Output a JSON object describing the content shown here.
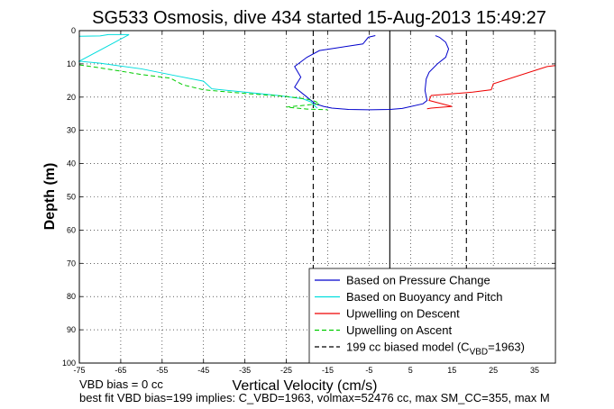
{
  "figure": {
    "footer_line1": "VBD bias = 0 cc",
    "footer_line2": "best fit VBD bias=199 implies: C_VBD=1963, volmax=52476 cc, max SM_CC=355, max M"
  },
  "chart_data": {
    "type": "line",
    "title": "SG533 Osmosis, dive 434 started 15-Aug-2013 15:49:27",
    "xlabel": "Vertical Velocity (cm/s)",
    "ylabel": "Depth (m)",
    "xlim": [
      -75,
      40
    ],
    "ylim": [
      100,
      0
    ],
    "y_inverted": true,
    "x_ticks": [
      "-75",
      "-65",
      "-55",
      "-45",
      "-35",
      "-25",
      "-15",
      "-5",
      "5",
      "15",
      "25",
      "35"
    ],
    "x_tick_values": [
      -75,
      -65,
      -55,
      -45,
      -35,
      -25,
      -15,
      -5,
      5,
      15,
      25,
      35
    ],
    "y_ticks": [
      "0",
      "10",
      "20",
      "30",
      "40",
      "50",
      "60",
      "70",
      "80",
      "90",
      "100"
    ],
    "y_tick_values": [
      0,
      10,
      20,
      30,
      40,
      50,
      60,
      70,
      80,
      90,
      100
    ],
    "grid": true,
    "legend_position": "bottom-right",
    "series": [
      {
        "name": "Based on Pressure Change",
        "color": "#0000cc",
        "dash": "solid",
        "x": [
          -3.5,
          -5.2,
          -6.5,
          -17,
          -20,
          -23,
          -21.5,
          -23,
          -20,
          -19,
          -18,
          -16,
          -14,
          -10,
          -5,
          0,
          3,
          8,
          9,
          8.5,
          8.8,
          9.5,
          11.5,
          13.5,
          14.2,
          13.5,
          12,
          11
        ],
        "y": [
          1.5,
          2,
          4,
          6,
          8,
          10.8,
          14,
          17,
          20,
          21,
          22,
          22.8,
          23.3,
          23.7,
          23.8,
          23.7,
          23.4,
          22,
          21,
          18,
          14.5,
          12.5,
          10,
          8,
          5.5,
          3.5,
          2,
          1.5
        ]
      },
      {
        "name": "Based on Buoyancy and Pitch",
        "color": "#00dddd",
        "dash": "solid",
        "x": [
          -75,
          -70,
          -68,
          -63,
          -75,
          -70,
          -60,
          -52,
          -45,
          -43,
          -35,
          -27,
          -21,
          -19,
          -18,
          -17.5
        ],
        "y": [
          1.7,
          1.6,
          1.2,
          1.2,
          9.2,
          9.8,
          11.5,
          13.5,
          15.2,
          17.5,
          18.5,
          19.5,
          20.5,
          21.5,
          22.8,
          23.3
        ]
      },
      {
        "name": "Upwelling on Descent",
        "color": "#ee0000",
        "dash": "solid",
        "x": [
          40,
          38,
          25,
          24.5,
          20,
          10,
          9.5,
          15,
          10,
          9
        ],
        "y": [
          10.5,
          10.8,
          16,
          17.8,
          18.5,
          19.5,
          21,
          22.8,
          23.3,
          23.5
        ]
      },
      {
        "name": "Upwelling on Ascent",
        "color": "#00cc00",
        "dash": "dashed",
        "x": [
          -75,
          -70,
          -60,
          -53,
          -50,
          -45,
          -35,
          -25,
          -20,
          -18,
          -17,
          -25,
          -20,
          -15
        ],
        "y": [
          10.3,
          11.2,
          13.2,
          14.3,
          16.3,
          17.8,
          18.9,
          19.8,
          20.6,
          21.3,
          22,
          23,
          23.6,
          23.8
        ]
      }
    ],
    "reference_lines": [
      {
        "name": "199 cc biased model (C",
        "name_subscript": "VBD",
        "name_suffix": "=1963)",
        "color": "#000000",
        "dash": "dashed",
        "x_values": [
          -18.5,
          18.5
        ]
      },
      {
        "name": "",
        "color": "#000000",
        "dash": "solid",
        "x_values": [
          0
        ]
      }
    ]
  }
}
